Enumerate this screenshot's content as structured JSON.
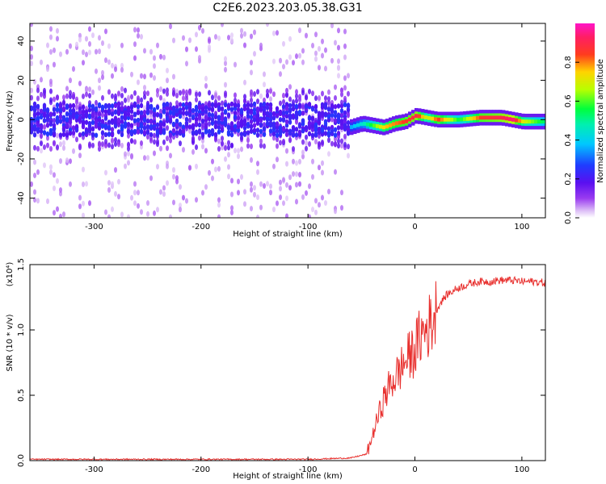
{
  "figure": {
    "title": "C2E6.2023.203.05.38.G31"
  },
  "chart_data": [
    {
      "type": "heatmap",
      "title": "C2E6.2023.203.05.38.G31",
      "xlabel": "Height of straight line (km)",
      "ylabel": "Frequency (Hz)",
      "xlim": [
        -360,
        122
      ],
      "ylim": [
        -50,
        49
      ],
      "xticks": [
        -300,
        -200,
        -100,
        0,
        100
      ],
      "yticks": [
        -40,
        -20,
        0,
        20,
        40
      ],
      "xtick_labels": [
        "-300",
        "-200",
        "-100",
        "0",
        "100"
      ],
      "ytick_labels": [
        "-40",
        "-20",
        "0",
        "20",
        "40"
      ],
      "colorbar": {
        "label": "Normalized spectral amplitude",
        "range": [
          0,
          1
        ],
        "ticks": [
          0.0,
          0.2,
          0.4,
          0.6,
          0.8
        ],
        "tick_labels": [
          "0.0",
          "0.2",
          "0.4",
          "0.6",
          "0.8"
        ],
        "colormap": "rainbow (white-purple-blue-cyan-green-yellow-red-magenta)"
      },
      "regions": [
        {
          "x_range": [
            -360,
            -62
          ],
          "description": "broadband noise",
          "core_freq": [
            -8,
            8
          ],
          "core_amplitude": 0.15,
          "spread_freq": [
            -50,
            49
          ],
          "spread_amplitude": 0.03
        },
        {
          "x_range": [
            -62,
            122
          ],
          "description": "narrow signal line near 0 Hz",
          "amplitude_min": 0.2,
          "amplitude_max": 0.95
        }
      ],
      "signal_line": {
        "x": [
          -62,
          -50,
          -40,
          -30,
          -20,
          -10,
          0,
          10,
          20,
          40,
          60,
          80,
          90,
          100,
          122
        ],
        "freq": [
          -4,
          -2,
          -3,
          -4,
          -2,
          -1,
          2,
          1,
          0,
          0,
          1,
          1,
          0,
          -1,
          -1
        ],
        "amplitude": [
          0.35,
          0.45,
          0.6,
          0.75,
          0.8,
          0.85,
          0.9,
          0.65,
          0.85,
          0.55,
          0.85,
          0.9,
          0.95,
          0.7,
          0.5
        ]
      }
    },
    {
      "type": "line",
      "xlabel": "Height of straight line (km)",
      "ylabel": "SNR (10 * v/v)",
      "y_multiplier": "(x10⁴)",
      "xlim": [
        -360,
        122
      ],
      "ylim": [
        0,
        1.5
      ],
      "xticks": [
        -300,
        -200,
        -100,
        0,
        100
      ],
      "yticks": [
        0.0,
        0.5,
        1.0,
        1.5
      ],
      "xtick_labels": [
        "-300",
        "-200",
        "-100",
        "0",
        "100"
      ],
      "ytick_labels": [
        "0.0",
        "0.5",
        "1.0",
        "1.5"
      ],
      "color": "#e8302e",
      "series": [
        {
          "x": [
            -360,
            -300,
            -200,
            -100,
            -60,
            -45,
            -40,
            -35,
            -30,
            -25,
            -20,
            -15,
            -10,
            -5,
            0,
            5,
            10,
            15,
            20,
            25,
            30,
            40,
            50,
            60,
            70,
            80,
            90,
            100,
            110,
            122
          ],
          "values": [
            0.01,
            0.01,
            0.01,
            0.01,
            0.02,
            0.05,
            0.18,
            0.32,
            0.45,
            0.55,
            0.62,
            0.68,
            0.75,
            0.8,
            0.85,
            0.95,
            1.0,
            1.05,
            1.15,
            1.22,
            1.27,
            1.32,
            1.35,
            1.37,
            1.37,
            1.38,
            1.38,
            1.37,
            1.37,
            1.36
          ]
        }
      ]
    }
  ]
}
